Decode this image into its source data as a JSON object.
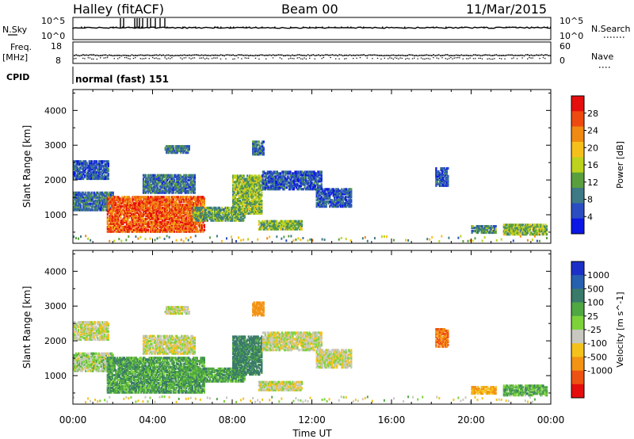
{
  "header": {
    "station": "Halley (fitACF)",
    "beam": "Beam 00",
    "date": "11/Mar/2015"
  },
  "strip": {
    "nsky_label": "N.Sky",
    "nsky_top": "10^5",
    "nsky_bottom": "10^0",
    "nsearch_label": "N.Search",
    "nsearch_top": "10^5",
    "nsearch_bottom": "10^0",
    "freq_label": "Freq.",
    "freq_unit": "[MHz]",
    "freq_top": "18",
    "freq_bottom": "8",
    "nave_label": "Nave",
    "nave_top": "60",
    "nave_bottom": "0",
    "cpid_label": "CPID",
    "cpid_value": "normal (fast) 151"
  },
  "x_axis": {
    "label": "Time UT",
    "ticks": [
      "00:00",
      "04:00",
      "08:00",
      "12:00",
      "16:00",
      "20:00",
      "00:00"
    ]
  },
  "chart_data": [
    {
      "type": "heatmap",
      "parameter": "power",
      "ylabel": "Slant Range [km]",
      "xlabel": "",
      "yticks": [
        1000,
        2000,
        3000,
        4000
      ],
      "ylim": [
        180,
        4600
      ],
      "xlim_hours": [
        0,
        24
      ],
      "colorbar": {
        "label": "Power [dB]",
        "ticks": [
          "4",
          "8",
          "12",
          "16",
          "20",
          "24",
          "28"
        ],
        "range": [
          0,
          32
        ],
        "colors": [
          "#0b16e6",
          "#2a4ec2",
          "#3d7a86",
          "#5a9f3e",
          "#bdd21c",
          "#f6c01b",
          "#f08a12",
          "#ee4a10",
          "#e60d0d"
        ]
      },
      "regions": [
        {
          "t0": 0.0,
          "t1": 2.0,
          "r0": 1100,
          "r1": 1600,
          "level": 8
        },
        {
          "t0": 1.7,
          "t1": 6.6,
          "r0": 480,
          "r1": 1500,
          "level": 26
        },
        {
          "t0": 0.0,
          "t1": 1.8,
          "r0": 2000,
          "r1": 2500,
          "level": 6
        },
        {
          "t0": 3.5,
          "t1": 6.1,
          "r0": 1600,
          "r1": 2100,
          "level": 8
        },
        {
          "t0": 4.6,
          "t1": 5.8,
          "r0": 2750,
          "r1": 2950,
          "level": 8
        },
        {
          "t0": 6.0,
          "t1": 8.6,
          "r0": 800,
          "r1": 1200,
          "level": 12
        },
        {
          "t0": 8.0,
          "t1": 9.5,
          "r0": 1000,
          "r1": 2100,
          "level": 14
        },
        {
          "t0": 9.0,
          "t1": 9.6,
          "r0": 2700,
          "r1": 3100,
          "level": 8
        },
        {
          "t0": 9.5,
          "t1": 12.5,
          "r0": 1700,
          "r1": 2200,
          "level": 6
        },
        {
          "t0": 12.2,
          "t1": 14.0,
          "r0": 1200,
          "r1": 1700,
          "level": 6
        },
        {
          "t0": 9.3,
          "t1": 11.5,
          "r0": 550,
          "r1": 780,
          "level": 14
        },
        {
          "t0": 18.2,
          "t1": 18.8,
          "r0": 1800,
          "r1": 2300,
          "level": 6
        },
        {
          "t0": 20.0,
          "t1": 21.2,
          "r0": 450,
          "r1": 650,
          "level": 10
        },
        {
          "t0": 21.6,
          "t1": 23.8,
          "r0": 400,
          "r1": 700,
          "level": 14
        }
      ]
    },
    {
      "type": "heatmap",
      "parameter": "velocity",
      "ylabel": "Slant Range [km]",
      "xlabel": "Time UT",
      "yticks": [
        1000,
        2000,
        3000,
        4000
      ],
      "ylim": [
        180,
        4600
      ],
      "xlim_hours": [
        0,
        24
      ],
      "colorbar": {
        "label": "Velocity [m s^-1]",
        "ticks": [
          "1000",
          "500",
          "100",
          "25",
          "-25",
          "-100",
          "-500",
          "-1000"
        ],
        "colors": [
          "#1c30c8",
          "#2860b0",
          "#3a7a6a",
          "#4fa842",
          "#7dd23a",
          "#c8c8c0",
          "#f4c21b",
          "#f39313",
          "#ee5212",
          "#e60d0d"
        ]
      },
      "regions": [
        {
          "t0": 0.0,
          "t1": 2.0,
          "r0": 1100,
          "r1": 1600,
          "level": 25
        },
        {
          "t0": 1.7,
          "t1": 6.6,
          "r0": 480,
          "r1": 1500,
          "level": 100
        },
        {
          "t0": 0.0,
          "t1": 1.8,
          "r0": 2000,
          "r1": 2500,
          "level": 0
        },
        {
          "t0": 3.5,
          "t1": 6.1,
          "r0": 1600,
          "r1": 2100,
          "level": 0
        },
        {
          "t0": 4.6,
          "t1": 5.8,
          "r0": 2750,
          "r1": 2950,
          "level": 0
        },
        {
          "t0": 6.0,
          "t1": 8.6,
          "r0": 800,
          "r1": 1200,
          "level": 100
        },
        {
          "t0": 8.0,
          "t1": 9.5,
          "r0": 1000,
          "r1": 2100,
          "level": 150
        },
        {
          "t0": 9.0,
          "t1": 9.6,
          "r0": 2700,
          "r1": 3100,
          "level": -200
        },
        {
          "t0": 9.5,
          "t1": 12.5,
          "r0": 1700,
          "r1": 2200,
          "level": 0
        },
        {
          "t0": 12.2,
          "t1": 14.0,
          "r0": 1200,
          "r1": 1700,
          "level": 0
        },
        {
          "t0": 9.3,
          "t1": 11.5,
          "r0": 550,
          "r1": 780,
          "level": 0
        },
        {
          "t0": 18.2,
          "t1": 18.8,
          "r0": 1800,
          "r1": 2300,
          "level": -300
        },
        {
          "t0": 20.0,
          "t1": 21.2,
          "r0": 450,
          "r1": 650,
          "level": -100
        },
        {
          "t0": 21.6,
          "t1": 23.8,
          "r0": 400,
          "r1": 700,
          "level": 80
        }
      ]
    }
  ]
}
